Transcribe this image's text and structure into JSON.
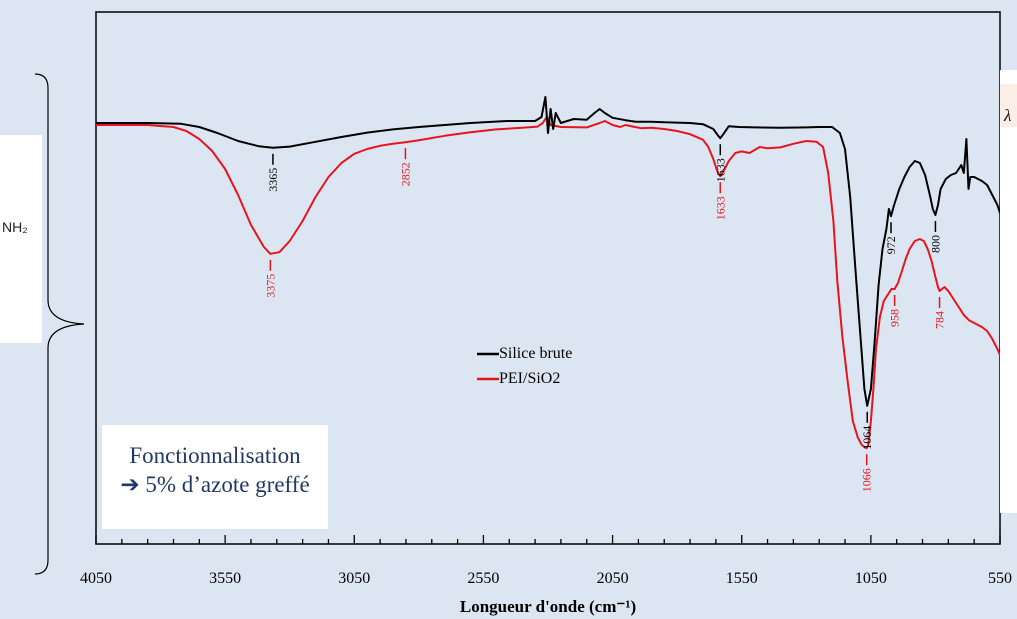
{
  "side_labels": {
    "left_group_text": "NH₂",
    "right_symbol": "λ"
  },
  "annotation": {
    "line1": "Fonctionnalisation",
    "line2": "➔ 5% d’azote greffé"
  },
  "chart_data": {
    "type": "line",
    "title": "",
    "xlabel": "Longueur d'onde (cm⁻¹)",
    "ylabel": "",
    "x_reversed": true,
    "xlim": [
      4050,
      550
    ],
    "x_ticks": [
      4050,
      3550,
      3050,
      2550,
      2050,
      1550,
      1050,
      550
    ],
    "ylim": [
      0,
      100
    ],
    "grid": false,
    "legend_position": "center",
    "series": [
      {
        "name": "Silice brute",
        "color": "#000000",
        "x": [
          4050,
          3850,
          3720,
          3650,
          3580,
          3500,
          3420,
          3365,
          3300,
          3200,
          3100,
          3000,
          2900,
          2800,
          2700,
          2600,
          2460,
          2350,
          2325,
          2310,
          2300,
          2290,
          2280,
          2270,
          2250,
          2200,
          2150,
          2120,
          2100,
          2080,
          2050,
          2000,
          1960,
          1900,
          1850,
          1800,
          1750,
          1700,
          1660,
          1640,
          1633,
          1620,
          1600,
          1560,
          1500,
          1400,
          1300,
          1250,
          1200,
          1170,
          1150,
          1130,
          1110,
          1090,
          1075,
          1064,
          1050,
          1035,
          1020,
          1005,
          990,
          980,
          972,
          960,
          940,
          920,
          900,
          880,
          860,
          840,
          820,
          810,
          800,
          790,
          780,
          760,
          740,
          720,
          700,
          690,
          680,
          672,
          665,
          650,
          620,
          600,
          580,
          560,
          550
        ],
        "y": [
          86.5,
          86.5,
          86.3,
          85.5,
          84,
          82,
          80.7,
          80.3,
          80.6,
          81.8,
          83,
          84.1,
          84.9,
          85.5,
          86,
          86.5,
          87,
          87,
          88,
          93,
          84,
          90,
          85,
          89,
          86.5,
          87.5,
          87.3,
          89,
          90,
          89,
          87.8,
          87.2,
          86.8,
          86.8,
          86.7,
          86.6,
          86.5,
          86.2,
          85,
          83.2,
          82.7,
          83.8,
          85.7,
          85.5,
          85.4,
          85.3,
          85.4,
          85.5,
          85.5,
          84,
          80,
          68,
          50,
          33,
          20,
          15.8,
          20,
          32,
          46,
          55,
          60,
          65,
          63.2,
          66,
          70,
          73,
          75.5,
          77,
          76.5,
          73.5,
          68,
          65,
          63.5,
          66,
          70,
          72.5,
          73.5,
          74,
          76,
          74,
          82.5,
          70,
          73,
          73,
          72,
          71,
          68.5,
          66,
          64
        ]
      },
      {
        "name": "PEI/SiO2",
        "color": "#e8141c",
        "x": [
          4050,
          3850,
          3750,
          3700,
          3650,
          3600,
          3550,
          3500,
          3450,
          3400,
          3375,
          3340,
          3300,
          3250,
          3200,
          3150,
          3100,
          3050,
          3000,
          2950,
          2900,
          2852,
          2800,
          2700,
          2600,
          2500,
          2400,
          2340,
          2320,
          2305,
          2290,
          2250,
          2150,
          2100,
          2080,
          2050,
          2020,
          2000,
          1970,
          1940,
          1900,
          1850,
          1800,
          1750,
          1700,
          1680,
          1660,
          1645,
          1633,
          1620,
          1600,
          1575,
          1550,
          1520,
          1480,
          1450,
          1400,
          1350,
          1300,
          1260,
          1235,
          1215,
          1195,
          1180,
          1160,
          1140,
          1120,
          1100,
          1085,
          1075,
          1066,
          1060,
          1050,
          1040,
          1030,
          1015,
          1000,
          985,
          970,
          958,
          945,
          930,
          915,
          900,
          880,
          860,
          845,
          830,
          815,
          800,
          790,
          784,
          775,
          765,
          750,
          730,
          710,
          690,
          670,
          650,
          620,
          600,
          580,
          560,
          550
        ],
        "y": [
          86,
          86,
          85.5,
          84.5,
          82.5,
          79.5,
          75,
          68.5,
          61,
          55.5,
          53.8,
          54.2,
          57,
          62,
          68,
          73,
          76.5,
          78.8,
          80,
          80.8,
          81.3,
          81.7,
          82.2,
          83.3,
          84.2,
          84.9,
          85.3,
          85.6,
          86.5,
          88,
          86,
          85.5,
          85.4,
          86.5,
          87,
          86,
          85.5,
          86,
          85.6,
          85.2,
          85.3,
          85,
          84.5,
          83.7,
          82.3,
          80.6,
          77.5,
          74.5,
          73.2,
          74.5,
          77,
          79,
          79.4,
          79,
          80.5,
          80.2,
          80.4,
          81.3,
          82,
          81.8,
          80.5,
          74,
          62,
          47,
          33,
          22,
          12,
          7.8,
          6,
          5.5,
          5.2,
          6,
          12,
          20,
          30,
          38,
          42,
          43.5,
          45,
          45,
          46.5,
          49.5,
          52.5,
          55,
          57,
          57.5,
          57,
          55,
          52,
          48,
          45.5,
          44.5,
          45,
          45.5,
          44.5,
          42.5,
          40.5,
          38.5,
          37.2,
          36.5,
          35.5,
          34.5,
          32.5,
          30,
          28.5
        ]
      }
    ],
    "peak_labels": [
      {
        "text": "3365",
        "x": 3365,
        "series": 0,
        "side": "below"
      },
      {
        "text": "1633",
        "x": 1633,
        "series": 0,
        "side": "below"
      },
      {
        "text": "1064",
        "x": 1064,
        "series": 0,
        "side": "below"
      },
      {
        "text": "972",
        "x": 972,
        "series": 0,
        "side": "below"
      },
      {
        "text": "800",
        "x": 800,
        "series": 0,
        "side": "below"
      },
      {
        "text": "3375",
        "x": 3375,
        "series": 1,
        "side": "below"
      },
      {
        "text": "2852",
        "x": 2852,
        "series": 1,
        "side": "below"
      },
      {
        "text": "1633",
        "x": 1633,
        "series": 1,
        "side": "below"
      },
      {
        "text": "1066",
        "x": 1066,
        "series": 1,
        "side": "below"
      },
      {
        "text": "958",
        "x": 958,
        "series": 1,
        "side": "below"
      },
      {
        "text": "784",
        "x": 784,
        "series": 1,
        "side": "below"
      }
    ]
  }
}
